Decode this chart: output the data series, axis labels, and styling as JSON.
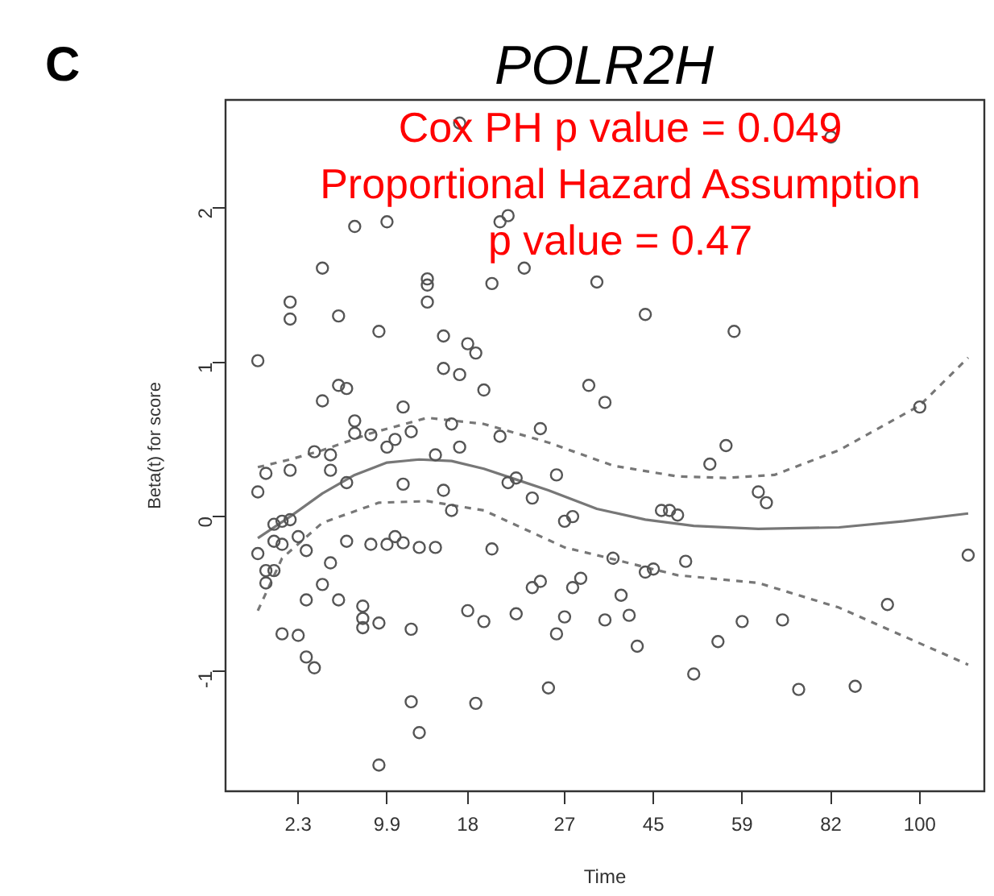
{
  "chart_data": {
    "type": "scatter",
    "title": "POLR2H",
    "annotations": [
      "C",
      "Cox PH p value = 0.049",
      "Proportional Hazard Assumption",
      "p value = 0.47"
    ],
    "xlabel": "Time",
    "ylabel": "Beta(t) for score",
    "ylim": [
      -1.78,
      2.7
    ],
    "yticks": [
      -1,
      0,
      1,
      2
    ],
    "grid": false,
    "legend": false,
    "categories": [
      null,
      null,
      null,
      null,
      null,
      null,
      null,
      null,
      null,
      "2.3",
      null,
      null,
      null,
      null,
      null,
      null,
      null,
      null,
      null,
      null,
      "9.9",
      null,
      null,
      null,
      null,
      null,
      null,
      null,
      null,
      null,
      "18",
      null,
      null,
      null,
      null,
      null,
      null,
      null,
      null,
      null,
      null,
      null,
      "27",
      null,
      null,
      null,
      null,
      null,
      null,
      null,
      null,
      null,
      null,
      "45",
      null,
      null,
      null,
      null,
      null,
      null,
      null,
      null,
      null,
      null,
      "59",
      null,
      null,
      null,
      null,
      null,
      null,
      null,
      null,
      null,
      null,
      "82",
      null,
      null,
      null,
      null,
      null,
      null,
      null,
      null,
      null,
      null,
      "100",
      null,
      null,
      null,
      null,
      null,
      null,
      null,
      null
    ],
    "series": [
      {
        "color": "#555555",
        "values": [
          null,
          null,
          null,
          null,
          1.01,
          0.28,
          -0.05,
          -0.03,
          1.39,
          -0.13,
          -0.22,
          0.42,
          1.61,
          0.4,
          1.3,
          0.83,
          1.88,
          -0.58,
          0.53,
          1.2,
          1.91,
          0.5,
          0.71,
          0.55,
          -0.2,
          1.54,
          0.4,
          1.17,
          0.6,
          2.55,
          1.12,
          1.06,
          0.82,
          1.51,
          1.91,
          1.95,
          0.25,
          1.61,
          0.12,
          0.57,
          -1.11,
          0.27,
          -0.03,
          0,
          -0.4,
          0.85,
          1.52,
          0.74,
          -0.27,
          -0.51,
          -0.64,
          -0.84,
          1.31,
          -0.34,
          0.04,
          0.04,
          0.01,
          -0.29,
          -1.02,
          null,
          0.34,
          -0.81,
          0.46,
          1.2,
          -0.68,
          null,
          0.16,
          0.09,
          null,
          -0.67,
          null,
          -1.12,
          null,
          null,
          null,
          2.46,
          null,
          null,
          -1.1,
          null,
          null,
          null,
          -0.57,
          null,
          null,
          null,
          0.71,
          null,
          null,
          null,
          null,
          null,
          -0.25,
          null,
          null
        ]
      },
      {
        "color": "#555555",
        "values": [
          null,
          null,
          null,
          null,
          0.16,
          -0.35,
          -0.16,
          -0.18,
          1.28,
          -0.77,
          -0.54,
          -0.98,
          0.75,
          0.3,
          0.85,
          0.22,
          0.62,
          -0.66,
          -0.18,
          -0.69,
          0.45,
          -0.13,
          0.21,
          -0.73,
          -1.4,
          1.5,
          -0.2,
          0.96,
          0.04,
          0.92,
          -0.61,
          -1.21,
          -0.68,
          -0.21,
          0.52,
          0.22,
          -0.63,
          null,
          -0.46,
          -0.42,
          null,
          -0.76,
          -0.65,
          -0.46,
          null,
          null,
          null,
          -0.67,
          null,
          null,
          null,
          null,
          -0.36,
          null,
          null,
          null,
          null,
          null,
          null,
          null,
          null,
          null,
          null,
          null,
          null,
          null,
          null,
          null,
          null,
          null,
          null,
          null,
          null,
          null,
          null,
          null,
          null,
          null,
          null,
          null,
          null,
          null,
          null,
          null,
          null,
          null,
          null,
          null,
          null,
          null,
          null,
          null,
          null,
          null,
          null
        ]
      },
      {
        "color": "#555555",
        "values": [
          null,
          null,
          null,
          null,
          -0.24,
          -0.43,
          -0.35,
          -0.76,
          0.3,
          null,
          -0.91,
          null,
          -0.44,
          -0.3,
          -0.54,
          -0.16,
          0.54,
          -0.72,
          null,
          -1.61,
          -0.18,
          null,
          -0.17,
          -1.2,
          null,
          1.39,
          null,
          0.17,
          null,
          0.45,
          null,
          null,
          null,
          null,
          null,
          null,
          null,
          null,
          null,
          null,
          null,
          null,
          null,
          null,
          null,
          null,
          null,
          null,
          null,
          null,
          null,
          null,
          null,
          null,
          null,
          null,
          null,
          null,
          null,
          null,
          null,
          null,
          null,
          null,
          null,
          null,
          null,
          null,
          null,
          null,
          null,
          null,
          null,
          null,
          null,
          null,
          null,
          null,
          null,
          null,
          null,
          null,
          null,
          null,
          null,
          null,
          null,
          null,
          null,
          null,
          null,
          null,
          null,
          null,
          null
        ]
      },
      {
        "color": "#555555",
        "values": [
          null,
          null,
          null,
          null,
          null,
          null,
          null,
          null,
          -0.02,
          null,
          null,
          null,
          null,
          null,
          null,
          null,
          null,
          null,
          null,
          null,
          null,
          null,
          null,
          null,
          null,
          null,
          null,
          null,
          null,
          null,
          null,
          null,
          null,
          null,
          null,
          null,
          null,
          null,
          null,
          null,
          null,
          null,
          null,
          null,
          null,
          null,
          null,
          null,
          null,
          null,
          null,
          null,
          null,
          null,
          null,
          null,
          null,
          null,
          null,
          null,
          null,
          null,
          null,
          null,
          null,
          null,
          null,
          null,
          null,
          null,
          null,
          null,
          null,
          null,
          null,
          null,
          null,
          null,
          null,
          null,
          null,
          null,
          null,
          null,
          null,
          null,
          null,
          null,
          null,
          null,
          null,
          null,
          null,
          null,
          null
        ]
      },
      {
        "type": "line",
        "color": "#777777",
        "marker": "none",
        "line_style": "solid",
        "values": [
          null,
          null,
          null,
          null,
          -0.14,
          null,
          null,
          null,
          0,
          null,
          null,
          null,
          0.15,
          null,
          null,
          null,
          0.27,
          null,
          null,
          null,
          0.35,
          null,
          null,
          null,
          0.37,
          null,
          null,
          null,
          0.36,
          null,
          null,
          null,
          0.31,
          null,
          null,
          null,
          0.24,
          null,
          null,
          null,
          0.17,
          null,
          null,
          null,
          null,
          null,
          0.05,
          null,
          null,
          null,
          null,
          null,
          -0.02,
          null,
          null,
          null,
          null,
          null,
          -0.06,
          null,
          null,
          null,
          null,
          null,
          null,
          null,
          -0.08,
          null,
          null,
          null,
          null,
          null,
          null,
          null,
          null,
          null,
          -0.07,
          null,
          null,
          null,
          null,
          null,
          null,
          null,
          -0.03,
          null,
          null,
          null,
          null,
          null,
          null,
          null,
          0.02,
          null,
          null
        ]
      },
      {
        "type": "line",
        "color": "#777777",
        "marker": "none",
        "line_style": "dashed",
        "values": [
          null,
          null,
          null,
          null,
          0.32,
          null,
          null,
          null,
          0.37,
          null,
          null,
          null,
          0.43,
          null,
          null,
          null,
          null,
          null,
          0.54,
          null,
          null,
          null,
          null,
          null,
          null,
          0.64,
          null,
          null,
          null,
          null,
          null,
          null,
          0.6,
          null,
          null,
          null,
          null,
          null,
          null,
          null,
          0.48,
          null,
          null,
          null,
          null,
          null,
          null,
          null,
          0.33,
          null,
          null,
          null,
          null,
          null,
          null,
          null,
          0.26,
          null,
          null,
          null,
          null,
          null,
          0.25,
          null,
          null,
          null,
          null,
          null,
          0.27,
          null,
          null,
          null,
          null,
          null,
          null,
          null,
          0.43,
          null,
          null,
          null,
          null,
          null,
          null,
          null,
          null,
          null,
          0.72,
          null,
          null,
          null,
          null,
          null,
          1.03,
          null,
          null
        ]
      },
      {
        "type": "line",
        "color": "#777777",
        "marker": "none",
        "line_style": "dashed",
        "values": [
          null,
          null,
          null,
          null,
          -0.61,
          null,
          null,
          -0.27,
          null,
          null,
          null,
          null,
          -0.04,
          null,
          null,
          null,
          null,
          null,
          null,
          0.09,
          null,
          null,
          null,
          null,
          null,
          0.1,
          null,
          null,
          null,
          null,
          null,
          null,
          0.04,
          null,
          null,
          null,
          null,
          null,
          null,
          null,
          null,
          null,
          -0.2,
          null,
          null,
          null,
          -0.25,
          null,
          null,
          null,
          null,
          null,
          null,
          null,
          null,
          null,
          -0.38,
          null,
          null,
          null,
          null,
          null,
          null,
          null,
          null,
          null,
          -0.43,
          null,
          null,
          null,
          null,
          null,
          null,
          null,
          null,
          null,
          -0.59,
          null,
          null,
          null,
          null,
          null,
          null,
          null,
          null,
          null,
          null,
          null,
          null,
          null,
          null,
          null,
          -0.96,
          null,
          null
        ]
      }
    ]
  }
}
